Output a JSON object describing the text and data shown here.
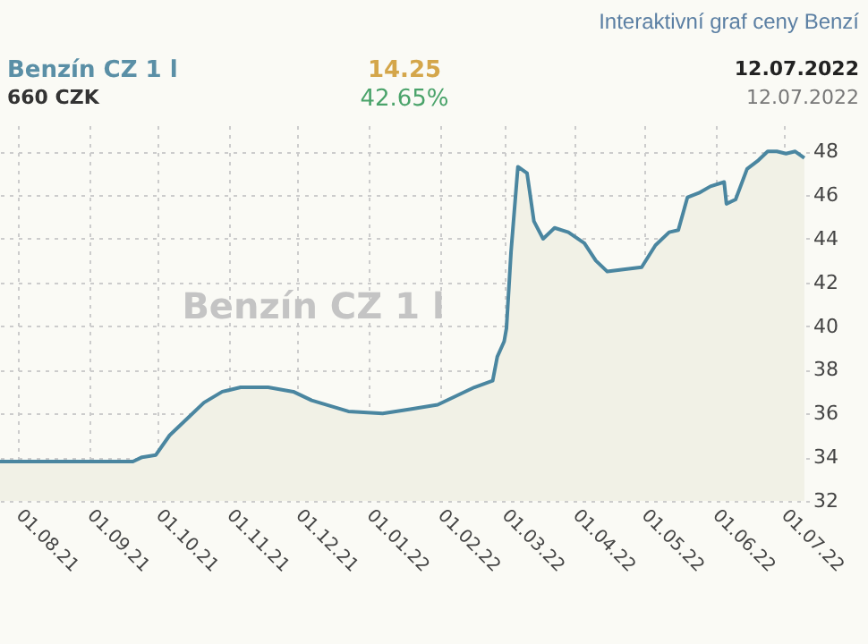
{
  "chart_data": {
    "type": "area",
    "title": "Interaktivní graf ceny Benzí",
    "annotations": [
      "Benzín CZ 1 l",
      "660 CZK",
      "14.25",
      "42.65%",
      "12.07.2022",
      "12.07.2022",
      "Benzín CZ 1 l"
    ],
    "x": [
      "2021-07-24",
      "2021-09-20",
      "2021-09-24",
      "2021-09-30",
      "2021-10-06",
      "2021-10-14",
      "2021-10-21",
      "2021-10-29",
      "2021-11-06",
      "2021-11-18",
      "2021-11-29",
      "2021-12-07",
      "2021-12-23",
      "2022-01-07",
      "2022-01-19",
      "2022-01-31",
      "2022-02-08",
      "2022-02-16",
      "2022-02-24",
      "2022-02-26",
      "2022-03-01",
      "2022-03-02",
      "2022-03-04",
      "2022-03-07",
      "2022-03-11",
      "2022-03-14",
      "2022-03-18",
      "2022-03-23",
      "2022-03-29",
      "2022-04-05",
      "2022-04-10",
      "2022-04-15",
      "2022-04-22",
      "2022-04-30",
      "2022-05-06",
      "2022-05-12",
      "2022-05-16",
      "2022-05-20",
      "2022-05-25",
      "2022-05-30",
      "2022-06-05",
      "2022-06-06",
      "2022-06-10",
      "2022-06-15",
      "2022-06-20",
      "2022-06-24",
      "2022-06-28",
      "2022-07-02",
      "2022-07-06",
      "2022-07-10"
    ],
    "series": [
      {
        "color": "#4a86a0",
        "values": [
          33.8,
          33.8,
          34.0,
          34.1,
          35.0,
          35.8,
          36.5,
          37.0,
          37.2,
          37.2,
          37.0,
          36.6,
          36.1,
          36.0,
          36.2,
          36.4,
          36.8,
          37.2,
          37.5,
          38.6,
          39.3,
          39.9,
          43.4,
          47.3,
          47.0,
          44.8,
          44.0,
          44.5,
          44.3,
          43.8,
          43.0,
          42.5,
          42.6,
          42.7,
          43.7,
          44.3,
          44.4,
          45.9,
          46.1,
          46.4,
          46.6,
          45.6,
          45.8,
          47.2,
          47.6,
          48.0,
          48.0,
          47.9,
          48.0,
          47.7
        ]
      }
    ],
    "xlim": [
      "2021-07-24",
      "2022-07-12"
    ],
    "xticks": [
      {
        "value": "2021-08-01",
        "label": "01.08.21"
      },
      {
        "value": "2021-09-01",
        "label": "01.09.21"
      },
      {
        "value": "2021-10-01",
        "label": "01.10.21"
      },
      {
        "value": "2021-11-01",
        "label": "01.11.21"
      },
      {
        "value": "2021-12-01",
        "label": "01.12.21"
      },
      {
        "value": "2022-01-01",
        "label": "01.01.22"
      },
      {
        "value": "2022-02-01",
        "label": "01.02.22"
      },
      {
        "value": "2022-03-01",
        "label": "01.03.22"
      },
      {
        "value": "2022-04-01",
        "label": "01.04.22"
      },
      {
        "value": "2022-05-01",
        "label": "01.05.22"
      },
      {
        "value": "2022-06-01",
        "label": "01.06.22"
      },
      {
        "value": "2022-07-01",
        "label": "01.07.22"
      }
    ],
    "ylim": [
      32,
      49.2
    ],
    "yticks": [
      32,
      34,
      36,
      38,
      40,
      42,
      44,
      46,
      48
    ],
    "grid": true
  }
}
